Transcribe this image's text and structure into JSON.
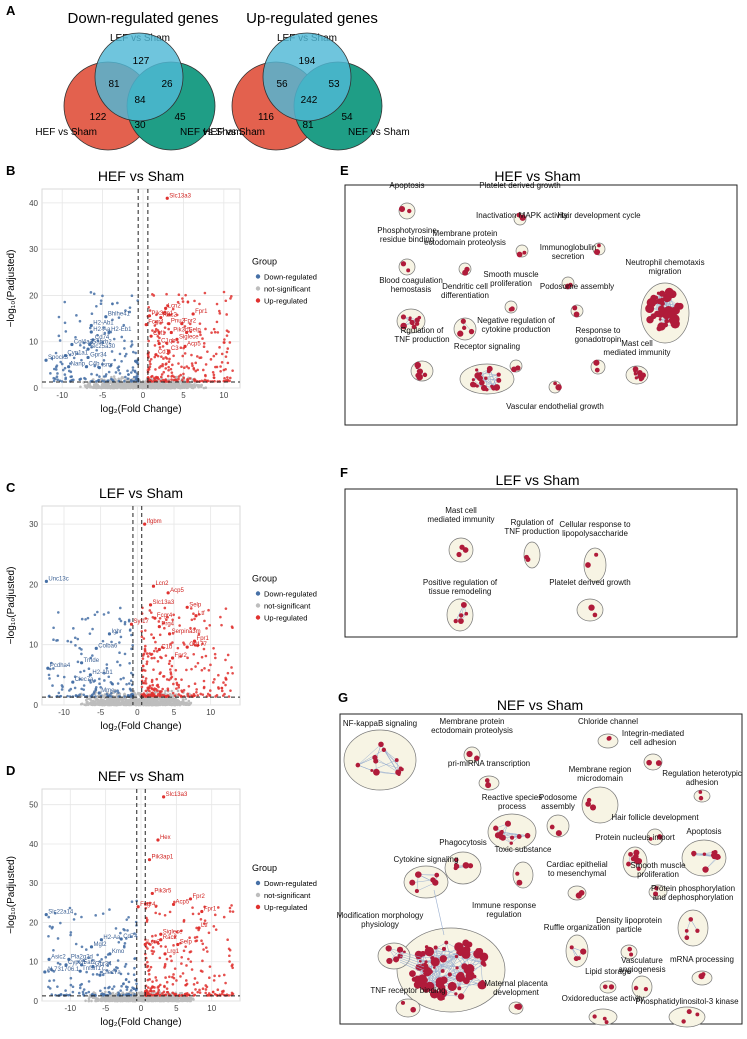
{
  "panel_labels": {
    "A": "A",
    "B": "B",
    "C": "C",
    "D": "D",
    "E": "E",
    "F": "F",
    "G": "G"
  },
  "venn": {
    "down": {
      "title": "Down-regulated genes",
      "lef_label": "LEF vs Sham",
      "hef_label": "HEF vs Sham",
      "nef_label": "NEF vs Sham",
      "lef_only": "127",
      "lef_hef": "81",
      "lef_nef": "26",
      "all": "84",
      "hef_only": "122",
      "nef_only": "45",
      "hef_nef": "30"
    },
    "up": {
      "title": "Up-regulated genes",
      "lef_label": "LEF vs Sham",
      "hef_label": "HEF vs Sham",
      "nef_label": "NEF vs Sham",
      "lef_only": "194",
      "lef_hef": "56",
      "lef_nef": "53",
      "all": "242",
      "hef_only": "116",
      "nef_only": "54",
      "hef_nef": "81"
    },
    "colors": {
      "lef": "#4fb8d6",
      "hef": "#e3614e",
      "nef": "#1f9e86"
    }
  },
  "volcano_common": {
    "xlabel": "log₂(Fold Change)",
    "ylabel": "−log₁₀(Padjusted)",
    "legend_title": "Group",
    "legend_items": [
      "Down-regulated",
      "not-significant",
      "Up-regulated"
    ],
    "colors": {
      "down": "#4670a6",
      "ns": "#bdbdbd",
      "up": "#e0312f"
    }
  },
  "chart_data": [
    {
      "type": "scatter",
      "title": "HEF vs Sham",
      "xlim": [
        -12.5,
        12
      ],
      "ylim": [
        0,
        43
      ],
      "xticks": [
        -10,
        -5,
        0,
        5,
        10
      ],
      "yticks": [
        0,
        10,
        20,
        30,
        40
      ],
      "labels_up": [
        {
          "t": "Slc13a3",
          "x": 3.0,
          "y": 41
        },
        {
          "t": "Lcn2",
          "x": 2.8,
          "y": 17.2
        },
        {
          "t": "Fpr1",
          "x": 6.2,
          "y": 16.0
        },
        {
          "t": "Pik3ap1",
          "x": 0.8,
          "y": 15.6
        },
        {
          "t": "Rac2",
          "x": 2.2,
          "y": 15.2
        },
        {
          "t": "Pnu2",
          "x": 3.2,
          "y": 13.9
        },
        {
          "t": "Fpr2",
          "x": 4.8,
          "y": 13.9
        },
        {
          "t": "Fcgr4",
          "x": 0.4,
          "y": 13.7
        },
        {
          "t": "Selp",
          "x": 5.4,
          "y": 12.0
        },
        {
          "t": "Pik3r5",
          "x": 3.5,
          "y": 12.0
        },
        {
          "t": "Csf1",
          "x": 1.0,
          "y": 11.2
        },
        {
          "t": "Siglece",
          "x": 4.2,
          "y": 10.5
        },
        {
          "t": "C1qb",
          "x": 2.0,
          "y": 9.6
        },
        {
          "t": "Acp5",
          "x": 5.2,
          "y": 9.0
        },
        {
          "t": "C3",
          "x": 3.2,
          "y": 8.0
        },
        {
          "t": "Cd1",
          "x": 1.6,
          "y": 7.2
        }
      ],
      "labels_down": [
        {
          "t": "Bhlhe41",
          "x": -4.6,
          "y": 15.4
        },
        {
          "t": "H2-Ab1",
          "x": -6.4,
          "y": 13.5
        },
        {
          "t": "H2-Aa",
          "x": -6.4,
          "y": 12.1
        },
        {
          "t": "H2-Eb1",
          "x": -4.2,
          "y": 12.1
        },
        {
          "t": "Cd74",
          "x": -6.2,
          "y": 10.4
        },
        {
          "t": "Col4a3",
          "x": -8.8,
          "y": 9.4
        },
        {
          "t": "Gabrb2",
          "x": -6.6,
          "y": 9.4
        },
        {
          "t": "Slc25a30",
          "x": -6.8,
          "y": 8.4
        },
        {
          "t": "Cyp1a1",
          "x": -9.6,
          "y": 7.0
        },
        {
          "t": "Gpr34",
          "x": -6.8,
          "y": 6.6
        },
        {
          "t": "Spock3",
          "x": -12.0,
          "y": 6.0
        },
        {
          "t": "Nanp",
          "x": -9.2,
          "y": 4.6
        },
        {
          "t": "C4b",
          "x": -7.0,
          "y": 4.6
        },
        {
          "t": "Ismr",
          "x": -5.4,
          "y": 4.4
        }
      ]
    },
    {
      "type": "scatter",
      "title": "LEF vs Sham",
      "xlim": [
        -13,
        14
      ],
      "ylim": [
        0,
        33
      ],
      "xticks": [
        -10,
        -5,
        0,
        5,
        10
      ],
      "yticks": [
        0,
        10,
        20,
        30
      ],
      "labels_up": [
        {
          "t": "Ifgbm",
          "x": 1.0,
          "y": 30.0
        },
        {
          "t": "Lcn2",
          "x": 2.2,
          "y": 19.7
        },
        {
          "t": "Acp5",
          "x": 4.2,
          "y": 18.6
        },
        {
          "t": "Slc13a3",
          "x": 1.8,
          "y": 16.6
        },
        {
          "t": "Selp",
          "x": 6.8,
          "y": 16.2
        },
        {
          "t": "Ltf",
          "x": 8.0,
          "y": 14.8
        },
        {
          "t": "Fcgr4",
          "x": 2.4,
          "y": 14.4
        },
        {
          "t": "Syt17",
          "x": -0.8,
          "y": 13.4
        },
        {
          "t": "Prg4",
          "x": 3.0,
          "y": 13.0
        },
        {
          "t": "Serpina3m",
          "x": 4.4,
          "y": 11.8
        },
        {
          "t": "Fpr1",
          "x": 7.8,
          "y": 10.6
        },
        {
          "t": "Cd177",
          "x": 6.8,
          "y": 9.6
        },
        {
          "t": "C1b",
          "x": 3.0,
          "y": 9.2
        },
        {
          "t": "Fpr2",
          "x": 4.8,
          "y": 7.8
        }
      ],
      "labels_down": [
        {
          "t": "Unc13c",
          "x": -12.4,
          "y": 20.5
        },
        {
          "t": "Ighr",
          "x": -3.8,
          "y": 11.8
        },
        {
          "t": "Colba6",
          "x": -5.6,
          "y": 9.4
        },
        {
          "t": "Trhde",
          "x": -7.6,
          "y": 7.0
        },
        {
          "t": "Pcdha4",
          "x": -12.2,
          "y": 6.1
        },
        {
          "t": "H2-Ab1",
          "x": -6.4,
          "y": 5.0
        },
        {
          "t": "Clec7a",
          "x": -8.8,
          "y": 3.8
        },
        {
          "t": "Mme",
          "x": -5.2,
          "y": 2.0
        }
      ]
    },
    {
      "type": "scatter",
      "title": "NEF vs Sham",
      "xlim": [
        -14,
        14
      ],
      "ylim": [
        0,
        54
      ],
      "xticks": [
        -10,
        -5,
        0,
        5,
        10
      ],
      "yticks": [
        0,
        10,
        20,
        30,
        40,
        50
      ],
      "labels_up": [
        {
          "t": "Slc13a3",
          "x": 3.2,
          "y": 52.0
        },
        {
          "t": "Hex",
          "x": 2.4,
          "y": 41.0
        },
        {
          "t": "Pik3ap1",
          "x": 1.2,
          "y": 36.0
        },
        {
          "t": "Pik3r5",
          "x": 1.6,
          "y": 27.4
        },
        {
          "t": "Fpr2",
          "x": 7.0,
          "y": 26.0
        },
        {
          "t": "Acp5",
          "x": 4.6,
          "y": 24.6
        },
        {
          "t": "Fpr1",
          "x": 8.6,
          "y": 22.8
        },
        {
          "t": "Fcgr4",
          "x": -0.4,
          "y": 24.0
        },
        {
          "t": "Siglece",
          "x": 2.8,
          "y": 17.0
        },
        {
          "t": "Ltf",
          "x": 8.2,
          "y": 18.6
        },
        {
          "t": "Selp",
          "x": 5.2,
          "y": 14.4
        },
        {
          "t": "Lcn2",
          "x": 0.6,
          "y": 14.4
        },
        {
          "t": "Lrg1",
          "x": 3.4,
          "y": 12.0
        },
        {
          "t": "Rac2",
          "x": 2.8,
          "y": 15.6
        }
      ],
      "labels_down": [
        {
          "t": "Slc22a14",
          "x": -13.4,
          "y": 22.0
        },
        {
          "t": "Cd74",
          "x": -2.8,
          "y": 15.8
        },
        {
          "t": "H2-Aa",
          "x": -5.6,
          "y": 15.6
        },
        {
          "t": "Mgl2",
          "x": -7.0,
          "y": 13.8
        },
        {
          "t": "Kmo",
          "x": -4.4,
          "y": 12.0
        },
        {
          "t": "Asic2",
          "x": -13.0,
          "y": 10.6
        },
        {
          "t": "Pla2g2d",
          "x": -10.2,
          "y": 10.6
        },
        {
          "t": "Cyp2j5",
          "x": -10.6,
          "y": 9.2
        },
        {
          "t": "Fat2",
          "x": -8.4,
          "y": 9.2
        },
        {
          "t": "Gpr34",
          "x": -6.8,
          "y": 8.8
        },
        {
          "t": "Tnfsrf17",
          "x": -8.6,
          "y": 7.6
        },
        {
          "t": "AL731706.1",
          "x": -13.6,
          "y": 7.4
        },
        {
          "t": "Clec7a",
          "x": -5.8,
          "y": 6.6
        }
      ]
    }
  ],
  "networks": {
    "E": {
      "title": "HEF vs Sham",
      "nodes": [
        {
          "id": "e1",
          "label": "Apoptosis",
          "n": 2
        },
        {
          "id": "e2",
          "label": "Platelet derived growth",
          "n": 2
        },
        {
          "id": "e3",
          "label": "Inactivation MAPK activity",
          "n": 2
        },
        {
          "id": "e4",
          "label": "Hair development cycle",
          "n": 2
        },
        {
          "id": "e5",
          "label": "Phosphotyrosine\nresidue binding",
          "n": 2
        },
        {
          "id": "e6",
          "label": "Membrane protein\nectodomain proteolysis",
          "n": 2
        },
        {
          "id": "e7",
          "label": "Immunoglobulin\nsecretion",
          "n": 2
        },
        {
          "id": "e8",
          "label": "Smooth muscle\nproliferation",
          "n": 2
        },
        {
          "id": "e9",
          "label": "Podosome assembly",
          "n": 2
        },
        {
          "id": "e10",
          "label": "Neutrophil chemotaxis\nmigration",
          "n": 40
        },
        {
          "id": "e11",
          "label": "Blood coagulation\nhemostasis",
          "n": 12
        },
        {
          "id": "e12",
          "label": "Dendritic cell\ndifferentiation",
          "n": 4
        },
        {
          "id": "e13",
          "label": "Negative regulation of\ncytokine production",
          "n": 2
        },
        {
          "id": "e14",
          "label": "Response to\ngonadotropin",
          "n": 2
        },
        {
          "id": "e15",
          "label": "Rgulation of\nTNF production",
          "n": 8
        },
        {
          "id": "e16",
          "label": "Receptor signaling",
          "n": 20
        },
        {
          "id": "e17",
          "label": "Mast cell\nmediated immunity",
          "n": 10
        },
        {
          "id": "e18",
          "label": "Vascular endothelial growth",
          "n": 2
        }
      ]
    },
    "F": {
      "title": "LEF vs Sham",
      "nodes": [
        {
          "id": "f1",
          "label": "Mast cell\nmediated immunity",
          "n": 3
        },
        {
          "id": "f2",
          "label": "Rgulation of\nTNF production",
          "n": 2
        },
        {
          "id": "f3",
          "label": "Cellular response to\nlipopolysaccharide",
          "n": 2
        },
        {
          "id": "f4",
          "label": "Positive regulation of\ntissue remodeling",
          "n": 5
        },
        {
          "id": "f5",
          "label": "Platelet derived growth",
          "n": 2
        }
      ]
    },
    "G": {
      "title": "NEF vs Sham",
      "nodes": [
        {
          "id": "g1",
          "label": "NF-kappaB signaling",
          "n": 12
        },
        {
          "id": "g2",
          "label": "Membrane protein\nectodomain proteolysis",
          "n": 2
        },
        {
          "id": "g3",
          "label": "Chloride channel",
          "n": 2
        },
        {
          "id": "g4",
          "label": "Integrin-mediated\ncell adhesion",
          "n": 2
        },
        {
          "id": "g5",
          "label": "pri-miRNA transcription",
          "n": 2
        },
        {
          "id": "g6",
          "label": "Membrane region\nmicrodomain",
          "n": 3
        },
        {
          "id": "g7",
          "label": "Regulation heterotypic\nadhesion",
          "n": 2
        },
        {
          "id": "g8",
          "label": "Reactive species\nprocess",
          "n": 12
        },
        {
          "id": "g9",
          "label": "Podosome\nassembly",
          "n": 2
        },
        {
          "id": "g10",
          "label": "Hair follicle development",
          "n": 2
        },
        {
          "id": "g11",
          "label": "Phagocytosis",
          "n": 6
        },
        {
          "id": "g12",
          "label": "Toxic substance",
          "n": 2
        },
        {
          "id": "g13",
          "label": "Protein nucleus import",
          "n": 8
        },
        {
          "id": "g14",
          "label": "Apoptosis",
          "n": 10
        },
        {
          "id": "g15",
          "label": "Cytokine signaling",
          "n": 6
        },
        {
          "id": "g16",
          "label": "Cardiac epithelial\nto mesenchymal",
          "n": 2
        },
        {
          "id": "g17",
          "label": "Smooth muscle\nproliferation",
          "n": 2
        },
        {
          "id": "g18",
          "label": "Immune response\nregulation",
          "n": 80
        },
        {
          "id": "g19",
          "label": "Protein phosphorylation\nand dephosphorylation",
          "n": 4
        },
        {
          "id": "g20",
          "label": "Density lipoprotein\nparticle",
          "n": 2
        },
        {
          "id": "g21",
          "label": "Modification morphology\nphysiology",
          "n": 6
        },
        {
          "id": "g22",
          "label": "Ruffle organization",
          "n": 4
        },
        {
          "id": "g23",
          "label": "Lipid storage",
          "n": 2
        },
        {
          "id": "g24",
          "label": "Vasculature\nangiogenesis",
          "n": 2
        },
        {
          "id": "g25",
          "label": "mRNA processing",
          "n": 2
        },
        {
          "id": "g26",
          "label": "TNF receptor binding",
          "n": 2
        },
        {
          "id": "g27",
          "label": "Maternal placenta\ndevelopment",
          "n": 2
        },
        {
          "id": "g28",
          "label": "Oxidoreductase activity",
          "n": 3
        },
        {
          "id": "g29",
          "label": "Phosphatidylinositol-3 kinase",
          "n": 3
        }
      ]
    }
  }
}
